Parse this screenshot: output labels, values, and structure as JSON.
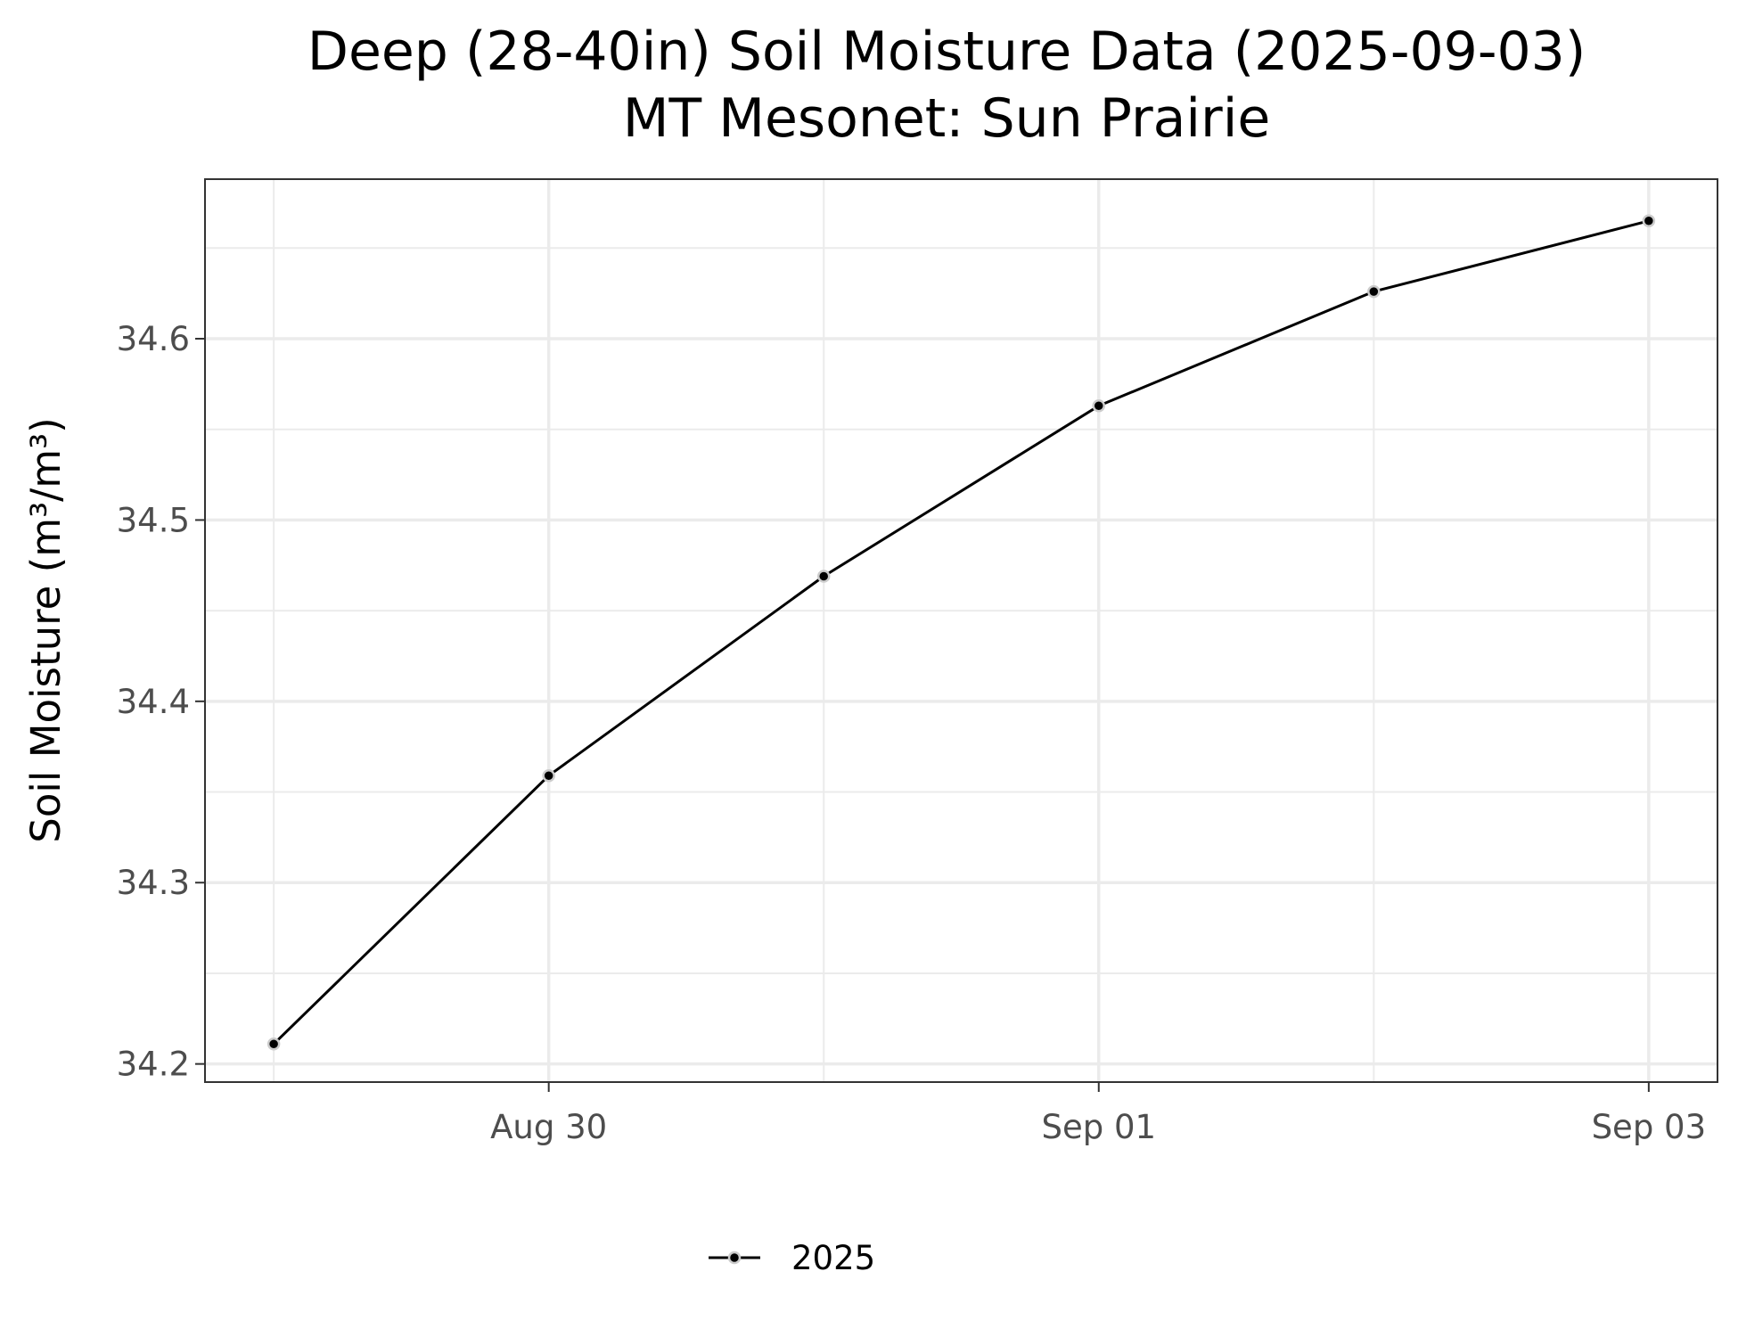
{
  "chart_data": {
    "type": "line",
    "title": "Deep (28-40in) Soil Moisture Data (2025-09-03)",
    "subtitle": "MT Mesonet: Sun Prairie",
    "xlabel": "",
    "ylabel": "Soil Moisture (m³/m³)",
    "x_tick_labels": [
      "Aug 30",
      "Sep 01",
      "Sep 03"
    ],
    "x_tick_dates": [
      "2025-08-30",
      "2025-09-01",
      "2025-09-03"
    ],
    "y_ticks": [
      34.2,
      34.3,
      34.4,
      34.5,
      34.6
    ],
    "y_tick_labels": [
      "34.2",
      "34.3",
      "34.4",
      "34.5",
      "34.6"
    ],
    "xlim": [
      "2025-08-28T18:00",
      "2025-09-03T06:00"
    ],
    "ylim": [
      34.19,
      34.688
    ],
    "grid": true,
    "legend_position": "bottom",
    "series": [
      {
        "name": "2025",
        "color": "#000000",
        "x": [
          "2025-08-29",
          "2025-08-30",
          "2025-08-31",
          "2025-09-01",
          "2025-09-02",
          "2025-09-03"
        ],
        "values": [
          34.211,
          34.359,
          34.469,
          34.563,
          34.626,
          34.665
        ]
      }
    ]
  }
}
